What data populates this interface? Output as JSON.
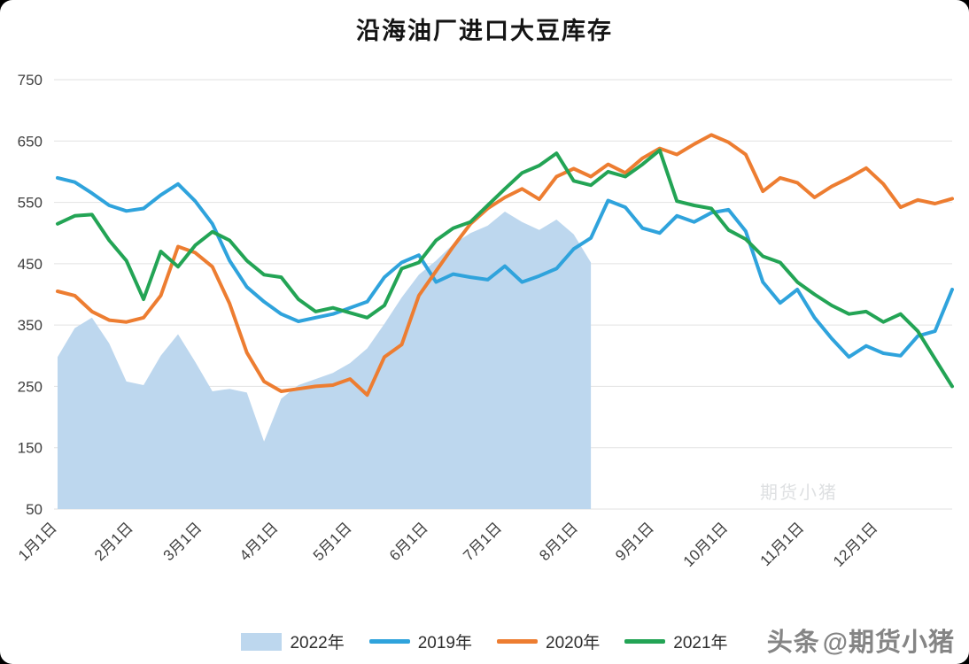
{
  "title": "沿海油厂进口大豆库存",
  "watermark": {
    "brand_prefix": "头条",
    "brand_handle": "@期货小猪",
    "faint_text": "期货小猪"
  },
  "colors": {
    "grid": "#e2e2e2",
    "tick_text": "#3f3f3f",
    "area_2022": "#bdd7ee",
    "line_2019": "#2fa3dc",
    "line_2020": "#ed7d31",
    "line_2021": "#23a455"
  },
  "chart_data": {
    "type": "line",
    "title": "沿海油厂进口大豆库存",
    "xlabel": "",
    "ylabel": "",
    "ylim": [
      50,
      750
    ],
    "ytick_step": 100,
    "ytick_labels": [
      "50",
      "150",
      "250",
      "350",
      "450",
      "550",
      "650",
      "750"
    ],
    "grid": true,
    "legend_position": "bottom",
    "x_axis": {
      "tick_labels": [
        "1月1日",
        "2月1日",
        "3月1日",
        "4月1日",
        "5月1日",
        "6月1日",
        "7月1日",
        "8月1日",
        "9月1日",
        "10月1日",
        "11月1日",
        "12月1日"
      ],
      "tick_week_positions": [
        0,
        4.43,
        8.43,
        12.86,
        17.14,
        21.57,
        25.86,
        30.29,
        34.71,
        39.0,
        43.43,
        47.71
      ],
      "total_weeks": 52,
      "points_per_week": 1
    },
    "series": [
      {
        "name": "2022年",
        "type": "area",
        "color": "#bdd7ee",
        "values": [
          298,
          345,
          362,
          320,
          258,
          252,
          300,
          335,
          290,
          242,
          246,
          240,
          160,
          230,
          252,
          262,
          272,
          288,
          312,
          352,
          395,
          432,
          455,
          482,
          500,
          512,
          535,
          518,
          505,
          522,
          498,
          452
        ]
      },
      {
        "name": "2019年",
        "type": "line",
        "color": "#2fa3dc",
        "values": [
          590,
          583,
          565,
          545,
          536,
          540,
          562,
          580,
          552,
          515,
          455,
          412,
          388,
          368,
          356,
          362,
          368,
          378,
          388,
          428,
          452,
          464,
          420,
          433,
          428,
          424,
          446,
          420,
          430,
          442,
          474,
          492,
          553,
          542,
          508,
          500,
          528,
          518,
          533,
          538,
          503,
          420,
          386,
          408,
          362,
          328,
          298,
          316,
          304,
          300,
          332,
          340,
          408
        ]
      },
      {
        "name": "2020年",
        "type": "line",
        "color": "#ed7d31",
        "values": [
          405,
          398,
          372,
          358,
          355,
          362,
          398,
          478,
          468,
          445,
          385,
          305,
          258,
          242,
          246,
          250,
          252,
          262,
          236,
          298,
          318,
          398,
          438,
          478,
          515,
          540,
          558,
          572,
          555,
          592,
          605,
          592,
          612,
          598,
          622,
          638,
          628,
          645,
          660,
          648,
          628,
          568,
          590,
          582,
          558,
          576,
          590,
          606,
          580,
          542,
          554,
          548,
          556
        ]
      },
      {
        "name": "2021年",
        "type": "line",
        "color": "#23a455",
        "values": [
          515,
          528,
          530,
          488,
          455,
          392,
          470,
          445,
          480,
          502,
          488,
          455,
          432,
          428,
          392,
          372,
          378,
          370,
          362,
          382,
          442,
          452,
          488,
          508,
          518,
          545,
          572,
          598,
          610,
          630,
          585,
          578,
          600,
          592,
          612,
          635,
          552,
          545,
          540,
          505,
          490,
          462,
          452,
          420,
          400,
          382,
          368,
          372,
          355,
          368,
          340,
          295,
          250
        ]
      }
    ]
  }
}
